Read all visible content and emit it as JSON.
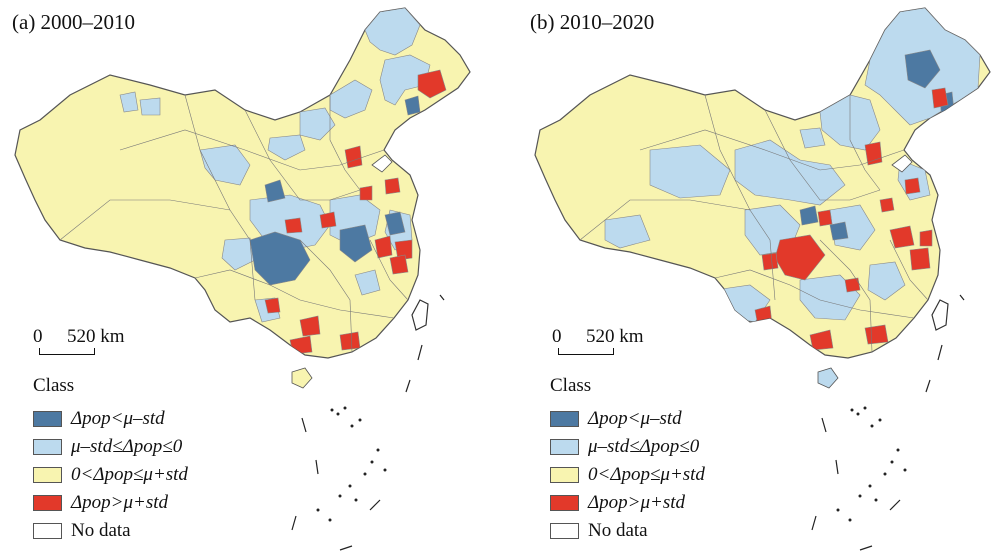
{
  "panels": [
    {
      "title": "(a) 2000–2010",
      "scale": {
        "zero": "0",
        "distance": "520 km"
      }
    },
    {
      "title": "(b) 2010–2020",
      "scale": {
        "zero": "0",
        "distance": "520 km"
      }
    }
  ],
  "legend": {
    "title": "Class",
    "items": [
      {
        "label": "Δpop<μ–std",
        "color": "#4d79a2"
      },
      {
        "label": "μ–std≤Δpop≤0",
        "color": "#bcdaee"
      },
      {
        "label": "0<Δpop≤μ+std",
        "color": "#f8f4b0"
      },
      {
        "label": "Δpop>μ+std",
        "color": "#e2392a"
      },
      {
        "label": "No data",
        "color": "#ffffff"
      }
    ]
  },
  "colors": {
    "decrease_strong": "#4d79a2",
    "decrease": "#bcdaee",
    "increase": "#f8f4b0",
    "increase_strong": "#e2392a",
    "boundary": "#777777"
  }
}
